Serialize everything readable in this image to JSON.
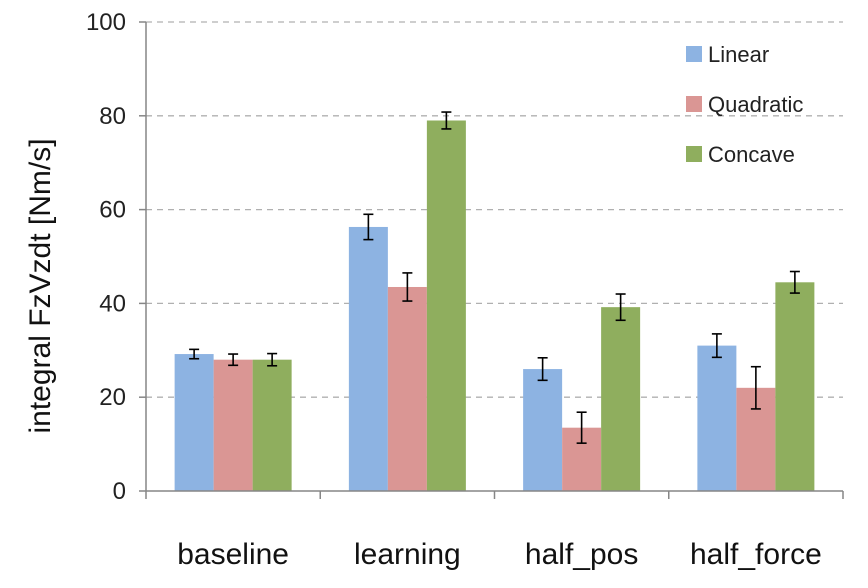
{
  "chart_data": {
    "type": "bar",
    "ylabel": "integral FzVzdt  [Nm/s]",
    "xlabel": "",
    "ylim": [
      0,
      100
    ],
    "yticks": [
      0,
      20,
      40,
      60,
      80,
      100
    ],
    "grid": "horizontal dashed",
    "legend_position": "top-right",
    "categories": [
      "baseline",
      "learning",
      "half_pos",
      "half_force"
    ],
    "series": [
      {
        "name": "Linear",
        "color": "#8db3e2",
        "values": [
          29.2,
          56.3,
          26.0,
          31.0
        ],
        "errors": [
          1.0,
          2.7,
          2.4,
          2.5
        ]
      },
      {
        "name": "Quadratic",
        "color": "#da9694",
        "values": [
          28.0,
          43.5,
          13.5,
          22.0
        ],
        "errors": [
          1.2,
          3.0,
          3.3,
          4.5
        ]
      },
      {
        "name": "Concave",
        "color": "#8fae5e",
        "values": [
          28.0,
          79.0,
          39.2,
          44.5
        ],
        "errors": [
          1.3,
          1.8,
          2.8,
          2.3
        ]
      }
    ]
  }
}
